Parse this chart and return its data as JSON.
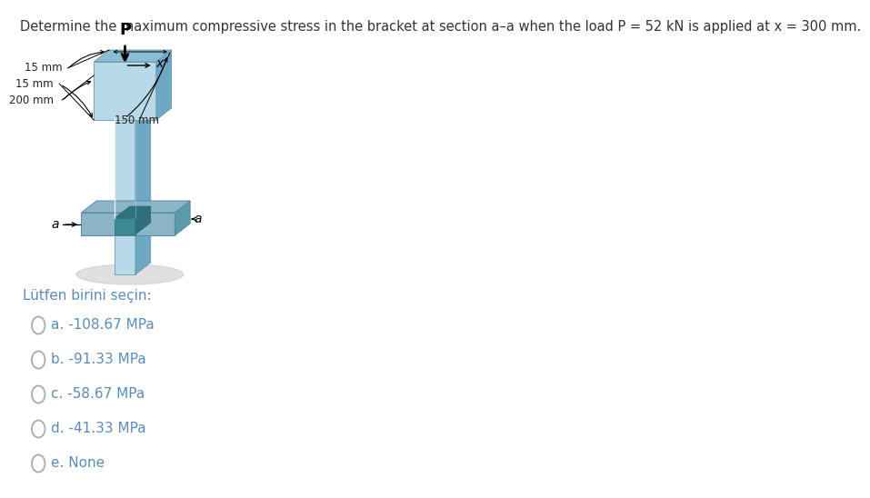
{
  "title": "Determine the maximum compressive stress in the bracket at section a–a when the load P = 52 kN is applied at x = 300 mm.",
  "title_fontsize": 10.5,
  "question_label": "Lütfen birini seçin:",
  "options": [
    "a. -108.67 MPa",
    "b. -91.33 MPa",
    "c. -58.67 MPa",
    "d. -41.33 MPa",
    "e. None"
  ],
  "bg_color": "#ffffff",
  "text_color": "#444444",
  "option_color": "#5b8db8",
  "option_fontsize": 11,
  "question_fontsize": 11,
  "c_light": "#b8d9e8",
  "c_mid": "#8bbdd4",
  "c_right": "#6fa8c4",
  "c_teal": "#3d8a94",
  "c_teal_top": "#2e7280",
  "c_shadow": "#c8c8c8",
  "c_plate_top": "#8ab5c4",
  "c_plate_right": "#5a9aaa"
}
